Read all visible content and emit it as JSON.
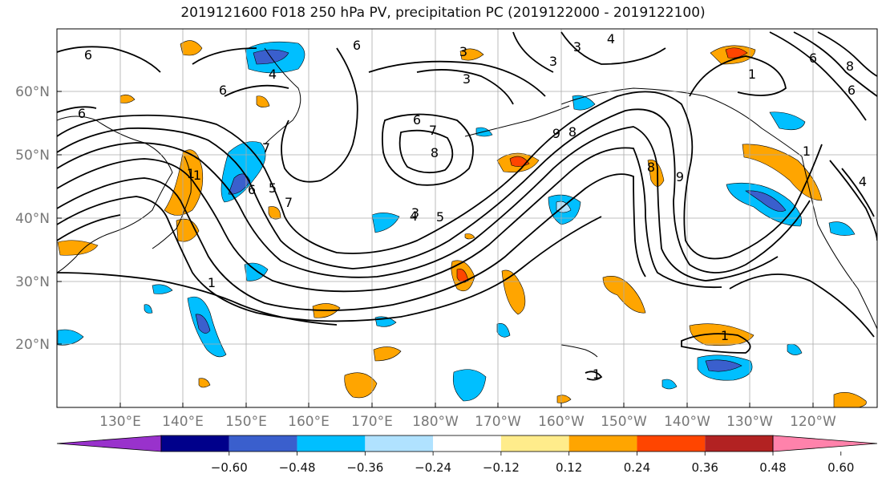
{
  "title": "2019121600 F018 250 hPa PV, precipitation PC (2019122000 - 2019122100)",
  "lat_labels": [
    "60°N",
    "50°N",
    "40°N",
    "30°N",
    "20°N"
  ],
  "lon_labels": [
    "130°E",
    "140°E",
    "150°E",
    "160°E",
    "170°E",
    "180°W",
    "170°W",
    "160°W",
    "150°W",
    "140°W",
    "130°W",
    "120°W"
  ],
  "colorbar": {
    "ticks": [
      "−0.60",
      "−0.48",
      "−0.36",
      "−0.24",
      "−0.12",
      "0.12",
      "0.24",
      "0.36",
      "0.48",
      "0.60"
    ],
    "colors": [
      "#9932cc",
      "#00008b",
      "#3a5fcd",
      "#00bfff",
      "#b0e2ff",
      "#ffffff",
      "#ffec8b",
      "#ffa500",
      "#ff4500",
      "#b22222",
      "#ff82ab"
    ]
  },
  "contour_labels": [
    "6",
    "6",
    "6",
    "6",
    "4",
    "3",
    "3",
    "3",
    "4",
    "6",
    "7",
    "8",
    "4",
    "5",
    "9",
    "8",
    "7",
    "6",
    "1",
    "7",
    "5",
    "6",
    "4",
    "3",
    "9",
    "8",
    "1",
    "1",
    "1",
    "1",
    "1",
    "1",
    "3",
    "6",
    "8"
  ]
}
